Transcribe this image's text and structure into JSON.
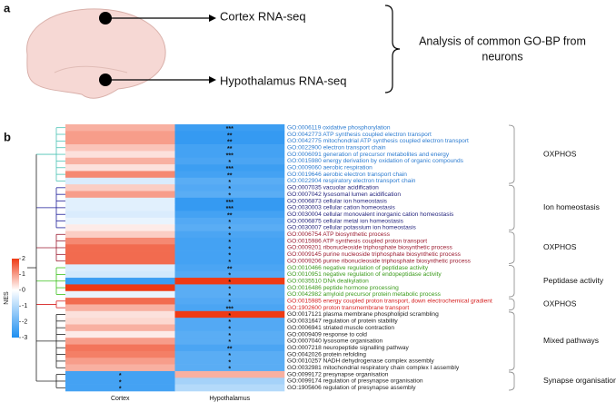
{
  "panel_a": {
    "label": "a",
    "cortex_label": "Cortex RNA-seq",
    "hypothalamus_label": "Hypothalamus RNA-seq",
    "analysis_text": [
      "Analysis of common GO-BP from",
      "neurons"
    ]
  },
  "chart_data": {
    "type": "heatmap",
    "panel_label": "b",
    "columns": [
      "Cortex",
      "Hypothalamus"
    ],
    "colorbar": {
      "label": "NES",
      "lim": [
        -3,
        2
      ],
      "ticks": [
        2,
        1,
        0,
        -1,
        -2,
        -3
      ]
    },
    "groups": [
      {
        "label": "OXPHOS",
        "color": "#2b7bd0",
        "tree_color": "#4cc3b5",
        "terms": [
          {
            "term": "GO:0006119 oxidative phosphorylation",
            "values": [
              0.8,
              -2.6
            ],
            "stars": [
              null,
              "***"
            ]
          },
          {
            "term": "GO:0042773 ATP synthesis coupled electron transport",
            "values": [
              1.0,
              -2.7
            ],
            "stars": [
              null,
              "**"
            ]
          },
          {
            "term": "GO:0042775 mitochondrial ATP synthesis coupled electron transport",
            "values": [
              1.0,
              -2.7
            ],
            "stars": [
              null,
              "**"
            ]
          },
          {
            "term": "GO:0022900 electron transport chain",
            "values": [
              0.6,
              -2.5
            ],
            "stars": [
              null,
              "**"
            ]
          },
          {
            "term": "GO:0006091 generation of precursor metabolites and energy",
            "values": [
              0.3,
              -2.5
            ],
            "stars": [
              null,
              "***"
            ]
          },
          {
            "term": "GO:0015980 energy derivation by oxidation of organic compounds",
            "values": [
              0.8,
              -2.4
            ],
            "stars": [
              null,
              "*"
            ]
          },
          {
            "term": "GO:0009060 aerobic respiration",
            "values": [
              0.3,
              -2.6
            ],
            "stars": [
              null,
              "***"
            ]
          },
          {
            "term": "GO:0019646 aerobic electron transport chain",
            "values": [
              1.2,
              -2.5
            ],
            "stars": [
              null,
              "**"
            ]
          },
          {
            "term": "GO:0022904 respiratory electron transport chain",
            "values": [
              -0.5,
              -2.2
            ],
            "stars": [
              null,
              "*"
            ]
          }
        ]
      },
      {
        "label": "Ion homeostasis",
        "color": "#1f1f7a",
        "tree_color": "#1f1f9a",
        "terms": [
          {
            "term": "GO:0007035 vacuolar acidification",
            "values": [
              0.5,
              -2.3
            ],
            "stars": [
              null,
              "*"
            ]
          },
          {
            "term": "GO:0007042 lysosomal lumen acidification",
            "values": [
              1.0,
              -2.2
            ],
            "stars": [
              null,
              "*"
            ]
          },
          {
            "term": "GO:0006873 cellular ion homeostasis",
            "values": [
              -0.4,
              -2.7
            ],
            "stars": [
              null,
              "***"
            ]
          },
          {
            "term": "GO:0030003 cellular cation homeostasis",
            "values": [
              -0.4,
              -2.7
            ],
            "stars": [
              null,
              "***"
            ]
          },
          {
            "term": "GO:0030004 cellular monovalent inorganic cation homeostasis",
            "values": [
              -0.5,
              -2.5
            ],
            "stars": [
              null,
              "**"
            ]
          },
          {
            "term": "GO:0006875 cellular metal ion homeostasis",
            "values": [
              -0.3,
              -2.3
            ],
            "stars": [
              null,
              "*"
            ]
          },
          {
            "term": "GO:0030007 cellular potassium ion homeostasis",
            "values": [
              0.2,
              -2.2
            ],
            "stars": [
              null,
              "*"
            ]
          }
        ]
      },
      {
        "label": "OXPHOS",
        "color": "#9b1b30",
        "tree_color": "#9b1b30",
        "terms": [
          {
            "term": "GO:0006754 ATP biosynthetic process",
            "values": [
              0.5,
              -2.4
            ],
            "stars": [
              null,
              "*"
            ]
          },
          {
            "term": "GO:0015986 ATP synthesis coupled proton transport",
            "values": [
              1.2,
              -2.5
            ],
            "stars": [
              null,
              "*"
            ]
          },
          {
            "term": "GO:0009201 ribonucleoside triphosphate biosynthetic process",
            "values": [
              1.5,
              -2.5
            ],
            "stars": [
              null,
              "*"
            ]
          },
          {
            "term": "GO:0009145 purine nucleoside triphosphate biosynthetic process",
            "values": [
              1.5,
              -2.5
            ],
            "stars": [
              null,
              "*"
            ]
          },
          {
            "term": "GO:0009206 purine ribonucleoside triphosphate biosynthetic process",
            "values": [
              1.5,
              -2.5
            ],
            "stars": [
              null,
              "*"
            ]
          }
        ]
      },
      {
        "label": "Peptidase activity",
        "color": "#3a9a1a",
        "tree_color": "#3ac01a",
        "terms": [
          {
            "term": "GO:0010466 negative regulation of peptidase activity",
            "values": [
              -0.5,
              -2.4
            ],
            "stars": [
              null,
              "**"
            ]
          },
          {
            "term": "GO:0010951 negative regulation of endopeptidase activity",
            "values": [
              -0.6,
              -2.3
            ],
            "stars": [
              null,
              "*"
            ]
          },
          {
            "term": "GO:0035510 DNA dealkylation",
            "values": [
              -2.6,
              2.4
            ],
            "stars": [
              null,
              "*"
            ]
          },
          {
            "term": "GO:0016486 peptide hormone processing",
            "values": [
              2.6,
              -2.2
            ],
            "stars": [
              null,
              "*"
            ]
          },
          {
            "term": "GO:0042982 amyloid precursor protein metabolic process",
            "values": [
              -0.3,
              -2.2
            ],
            "stars": [
              null,
              "*"
            ]
          }
        ]
      },
      {
        "label": "OXPHOS",
        "color": "#d62020",
        "tree_color": "#d62020",
        "terms": [
          {
            "term": "GO:0015985 energy coupled proton transport, down electrochemical gradient",
            "values": [
              1.5,
              -2.3
            ],
            "stars": [
              null,
              "*"
            ]
          },
          {
            "term": "GO:1902600 proton transmembrane transport",
            "values": [
              0.8,
              -2.4
            ],
            "stars": [
              null,
              "***"
            ]
          }
        ]
      },
      {
        "label": "Mixed pathways",
        "color": "#222222",
        "tree_color": "#222222",
        "terms": [
          {
            "term": "GO:0017121 plasma membrane phospholipid scrambling",
            "values": [
              0.3,
              2.0
            ],
            "stars": [
              null,
              "*"
            ]
          },
          {
            "term": "GO:0031647 regulation of protein stability",
            "values": [
              0.4,
              -2.3
            ],
            "stars": [
              null,
              "*"
            ]
          },
          {
            "term": "GO:0006941 striated muscle contraction",
            "values": [
              0.8,
              -2.3
            ],
            "stars": [
              null,
              "*"
            ]
          },
          {
            "term": "GO:0009409 response to cold",
            "values": [
              0.2,
              -2.2
            ],
            "stars": [
              null,
              "*"
            ]
          },
          {
            "term": "GO:0007040 lysosome organisation",
            "values": [
              1.0,
              -2.2
            ],
            "stars": [
              null,
              "*"
            ]
          },
          {
            "term": "GO:0007218 neuropeptide signalling pathway",
            "values": [
              1.4,
              -2.4
            ],
            "stars": [
              null,
              "**"
            ]
          },
          {
            "term": "GO:0042026 protein refolding",
            "values": [
              1.3,
              -2.2
            ],
            "stars": [
              null,
              "*"
            ]
          },
          {
            "term": "GO:0010257 NADH dehydrogenase complex assembly",
            "values": [
              1.0,
              -2.2
            ],
            "stars": [
              null,
              "*"
            ]
          },
          {
            "term": "GO:0032981 mitochondrial respiratory chain complex I assembly",
            "values": [
              0.8,
              -2.2
            ],
            "stars": [
              null,
              "*"
            ]
          }
        ]
      },
      {
        "label": "Synapse organisation",
        "color": "#222222",
        "tree_color": "#222222",
        "terms": [
          {
            "term": "GO:0099172 presynapse organisation",
            "values": [
              -2.5,
              0.8
            ],
            "stars": [
              "*",
              null
            ]
          },
          {
            "term": "GO:0099174 regulation of presynapse organisation",
            "values": [
              -2.5,
              -1.2
            ],
            "stars": [
              "*",
              null
            ]
          },
          {
            "term": "GO:1905606 regulation of presynapse assembly",
            "values": [
              -2.5,
              -1.0
            ],
            "stars": [
              "*",
              null
            ]
          }
        ]
      }
    ]
  }
}
